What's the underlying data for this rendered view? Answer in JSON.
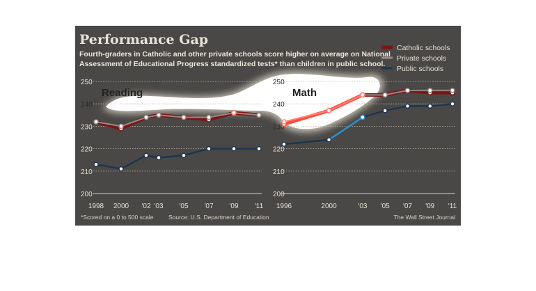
{
  "figure": {
    "title": "Performance Gap",
    "subtitle_line1": "Fourth-graders in Catholic and other private schools score higher on average on National",
    "subtitle_line2": "Assessment of Educational Progress standardized tests* than children in public school.",
    "footnote": "*Scored on a 0 to 500 scale",
    "source": "Source: U.S. Department of Education",
    "credit": "The Wall Street Journal"
  },
  "colors": {
    "catholic": "#7a1616",
    "catholic_highlight": "#ff4c3a",
    "private": "#9a8a86",
    "private_highlight": "#ff8578",
    "public": "#1c3550",
    "public_highlight": "#2e8fcf",
    "background": "#4a4846",
    "highlight_blob": "#ffffff"
  },
  "legend": [
    {
      "label": "Catholic schools",
      "series": "Catholic schools"
    },
    {
      "label": "Private schools",
      "series": "Private schools"
    },
    {
      "label": "Public schools",
      "series": "Public schools"
    }
  ],
  "chart_data": [
    {
      "type": "line",
      "title": "Reading",
      "x": [
        1998,
        2000,
        2002,
        2003,
        2005,
        2007,
        2009,
        2011
      ],
      "xticklabels": [
        "1998",
        "2000",
        "'02",
        "'03",
        "'05",
        "'07",
        "'09",
        "'11"
      ],
      "ylim": [
        200,
        250
      ],
      "yticks": [
        200,
        210,
        220,
        230,
        240,
        250
      ],
      "grid": "horizontal dotted",
      "series": [
        {
          "name": "Catholic schools",
          "values": [
            232,
            229,
            234,
            235,
            234,
            233,
            236,
            235
          ]
        },
        {
          "name": "Private schools",
          "values": [
            232,
            230,
            234,
            235,
            234,
            234,
            236,
            235
          ]
        },
        {
          "name": "Public schools",
          "values": [
            213,
            211,
            217,
            216,
            217,
            220,
            220,
            220
          ]
        }
      ]
    },
    {
      "type": "line",
      "title": "Math",
      "x": [
        1996,
        2000,
        2003,
        2005,
        2007,
        2009,
        2011
      ],
      "xticklabels": [
        "1996",
        "2000",
        "'03",
        "'05",
        "'07",
        "'09",
        "'11"
      ],
      "ylim": [
        200,
        250
      ],
      "yticks": [
        200,
        210,
        220,
        230,
        240,
        250
      ],
      "grid": "horizontal dotted",
      "series": [
        {
          "name": "Catholic schools",
          "values": [
            231,
            237,
            244,
            244,
            246,
            245,
            245
          ]
        },
        {
          "name": "Private schools",
          "values": [
            232,
            237,
            244,
            244,
            246,
            246,
            246
          ]
        },
        {
          "name": "Public schools",
          "values": [
            222,
            224,
            234,
            237,
            239,
            239,
            240
          ]
        }
      ]
    }
  ]
}
